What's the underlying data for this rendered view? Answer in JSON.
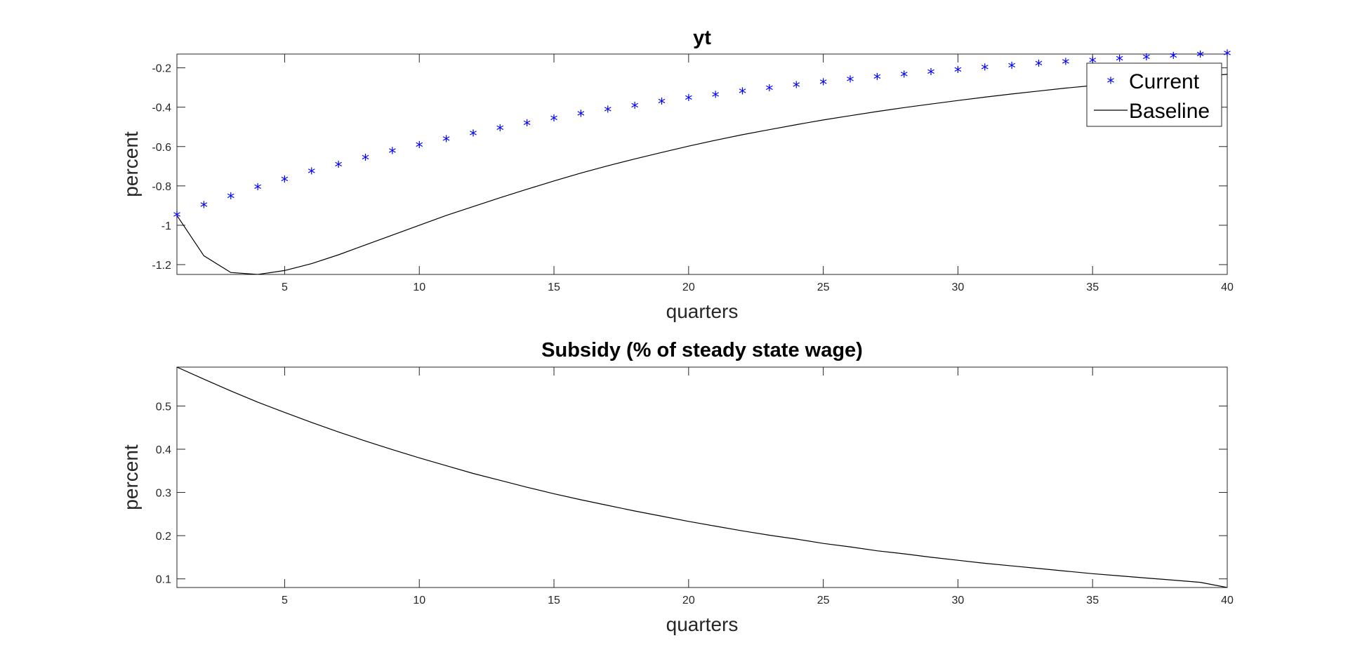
{
  "chart_data": [
    {
      "type": "line",
      "title": "yt",
      "xlabel": "quarters",
      "ylabel": "percent",
      "xlim": [
        1,
        40
      ],
      "ylim": [
        -1.25,
        -0.13
      ],
      "xticks": [
        5,
        10,
        15,
        20,
        25,
        30,
        35,
        40
      ],
      "xtick_labels": [
        "5",
        "10",
        "15",
        "20",
        "25",
        "30",
        "35",
        "40"
      ],
      "yticks": [
        -1.2,
        -1,
        -0.8,
        -0.6,
        -0.4,
        -0.2
      ],
      "ytick_labels": [
        "-1.2",
        "-1",
        "-0.8",
        "-0.6",
        "-0.4",
        "-0.2"
      ],
      "grid": false,
      "legend": "top-right",
      "x": [
        1,
        2,
        3,
        4,
        5,
        6,
        7,
        8,
        9,
        10,
        11,
        12,
        13,
        14,
        15,
        16,
        17,
        18,
        19,
        20,
        21,
        22,
        23,
        24,
        25,
        26,
        27,
        28,
        29,
        30,
        31,
        32,
        33,
        34,
        35,
        36,
        37,
        38,
        39,
        40
      ],
      "series": [
        {
          "name": "Current",
          "style": "markers",
          "marker": "*",
          "color": "#0000ff",
          "values": [
            -0.95,
            -0.9,
            -0.855,
            -0.81,
            -0.77,
            -0.73,
            -0.695,
            -0.66,
            -0.625,
            -0.595,
            -0.565,
            -0.537,
            -0.51,
            -0.485,
            -0.46,
            -0.437,
            -0.415,
            -0.395,
            -0.375,
            -0.357,
            -0.34,
            -0.322,
            -0.306,
            -0.29,
            -0.276,
            -0.262,
            -0.249,
            -0.237,
            -0.225,
            -0.213,
            -0.202,
            -0.192,
            -0.182,
            -0.173,
            -0.165,
            -0.157,
            -0.149,
            -0.142,
            -0.136,
            -0.13
          ]
        },
        {
          "name": "Baseline",
          "style": "line",
          "color": "#000000",
          "values": [
            -0.95,
            -1.155,
            -1.24,
            -1.25,
            -1.23,
            -1.195,
            -1.15,
            -1.1,
            -1.05,
            -1.0,
            -0.95,
            -0.905,
            -0.86,
            -0.817,
            -0.775,
            -0.735,
            -0.698,
            -0.663,
            -0.63,
            -0.598,
            -0.568,
            -0.54,
            -0.514,
            -0.489,
            -0.465,
            -0.443,
            -0.422,
            -0.402,
            -0.384,
            -0.366,
            -0.349,
            -0.333,
            -0.318,
            -0.303,
            -0.29,
            -0.277,
            -0.265,
            -0.254,
            -0.243,
            -0.233
          ]
        }
      ]
    },
    {
      "type": "line",
      "title": "Subsidy (% of steady state wage)",
      "xlabel": "quarters",
      "ylabel": "percent",
      "xlim": [
        1,
        40
      ],
      "ylim": [
        0.08,
        0.59
      ],
      "xticks": [
        5,
        10,
        15,
        20,
        25,
        30,
        35,
        40
      ],
      "xtick_labels": [
        "5",
        "10",
        "15",
        "20",
        "25",
        "30",
        "35",
        "40"
      ],
      "yticks": [
        0.1,
        0.2,
        0.3,
        0.4,
        0.5
      ],
      "ytick_labels": [
        "0.1",
        "0.2",
        "0.3",
        "0.4",
        "0.5"
      ],
      "grid": false,
      "x": [
        1,
        2,
        3,
        4,
        5,
        6,
        7,
        8,
        9,
        10,
        11,
        12,
        13,
        14,
        15,
        16,
        17,
        18,
        19,
        20,
        21,
        22,
        23,
        24,
        25,
        26,
        27,
        28,
        29,
        30,
        31,
        32,
        33,
        34,
        35,
        36,
        37,
        38,
        39,
        40
      ],
      "series": [
        {
          "style": "line",
          "color": "#000000",
          "values": [
            0.59,
            0.562,
            0.535,
            0.509,
            0.485,
            0.462,
            0.44,
            0.419,
            0.399,
            0.38,
            0.362,
            0.344,
            0.328,
            0.312,
            0.297,
            0.283,
            0.27,
            0.257,
            0.245,
            0.233,
            0.222,
            0.211,
            0.201,
            0.192,
            0.182,
            0.174,
            0.165,
            0.158,
            0.15,
            0.143,
            0.136,
            0.13,
            0.124,
            0.118,
            0.112,
            0.107,
            0.102,
            0.097,
            0.092,
            0.08
          ]
        }
      ]
    }
  ]
}
